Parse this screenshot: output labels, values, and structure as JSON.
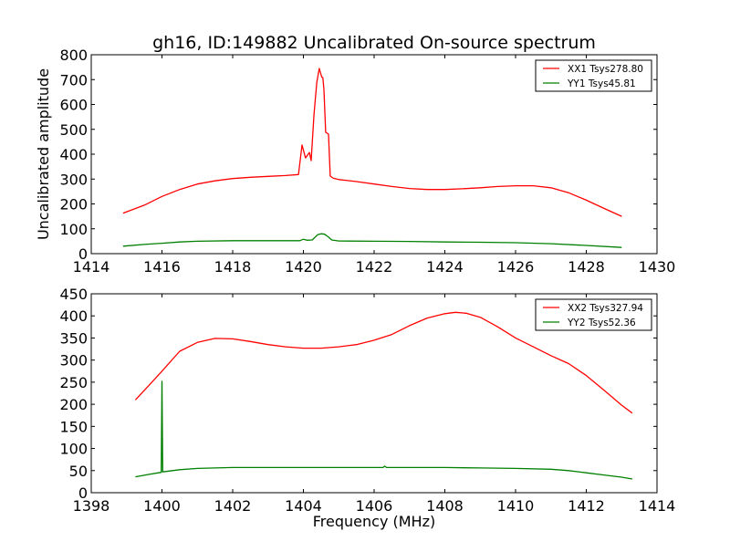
{
  "chart_data": [
    {
      "type": "line",
      "title": "gh16, ID:149882 Uncalibrated On-source spectrum",
      "xlabel": "",
      "ylabel": "Uncalibrated amplitude",
      "xlim": [
        1414,
        1430
      ],
      "ylim": [
        0,
        800
      ],
      "xticks": [
        1414,
        1416,
        1418,
        1420,
        1422,
        1424,
        1426,
        1428,
        1430
      ],
      "yticks": [
        0,
        100,
        200,
        300,
        400,
        500,
        600,
        700,
        800
      ],
      "grid": false,
      "legend_position": "top-right",
      "series": [
        {
          "name": "XX1 Tsys278.80",
          "color": "#ff0000",
          "x": [
            1414.9,
            1415.5,
            1416,
            1416.5,
            1417,
            1417.5,
            1418,
            1418.5,
            1419,
            1419.5,
            1419.86,
            1419.96,
            1420.06,
            1420.17,
            1420.22,
            1420.3,
            1420.38,
            1420.45,
            1420.52,
            1420.55,
            1420.58,
            1420.63,
            1420.71,
            1420.76,
            1420.85,
            1421,
            1421.5,
            1422,
            1422.5,
            1423,
            1423.5,
            1424,
            1424.5,
            1425,
            1425.5,
            1426,
            1426.5,
            1427,
            1427.5,
            1428,
            1428.5,
            1429
          ],
          "y": [
            163,
            195,
            230,
            258,
            280,
            293,
            302,
            307,
            311,
            314,
            318,
            437,
            385,
            407,
            374,
            560,
            690,
            745,
            710,
            708,
            660,
            488,
            481,
            312,
            303,
            298,
            290,
            280,
            270,
            262,
            258,
            258,
            261,
            265,
            270,
            273,
            273,
            265,
            245,
            215,
            182,
            150
          ]
        },
        {
          "name": "YY1 Tsys45.81",
          "color": "#008000",
          "x": [
            1414.9,
            1415.5,
            1416,
            1416.5,
            1417,
            1418,
            1419,
            1419.9,
            1420.0,
            1420.1,
            1420.25,
            1420.4,
            1420.5,
            1420.6,
            1420.7,
            1420.8,
            1421,
            1422,
            1423,
            1424,
            1425,
            1426,
            1427,
            1428,
            1429
          ],
          "y": [
            30,
            37,
            42,
            47,
            50,
            52,
            52,
            52,
            58,
            54,
            55,
            76,
            80,
            78,
            68,
            55,
            51,
            50,
            49,
            47,
            46,
            44,
            40,
            33,
            25
          ]
        }
      ]
    },
    {
      "type": "line",
      "title": "",
      "xlabel": "Frequency (MHz)",
      "ylabel": "",
      "xlim": [
        1398,
        1414
      ],
      "ylim": [
        0,
        450
      ],
      "xticks": [
        1398,
        1400,
        1402,
        1404,
        1406,
        1408,
        1410,
        1412,
        1414
      ],
      "yticks": [
        0,
        50,
        100,
        150,
        200,
        250,
        300,
        350,
        400,
        450
      ],
      "grid": false,
      "legend_position": "top-right",
      "series": [
        {
          "name": "XX2 Tsys327.94",
          "color": "#ff0000",
          "x": [
            1399.25,
            1399.6,
            1400,
            1400.5,
            1401,
            1401.5,
            1402,
            1402.5,
            1403,
            1403.5,
            1404,
            1404.5,
            1405,
            1405.5,
            1406,
            1406.5,
            1407,
            1407.5,
            1408,
            1408.3,
            1408.6,
            1409,
            1409.5,
            1410,
            1410.5,
            1411,
            1411.5,
            1412,
            1412.5,
            1413,
            1413.3
          ],
          "y": [
            210,
            240,
            275,
            320,
            340,
            349,
            348,
            342,
            335,
            330,
            327,
            327,
            330,
            335,
            345,
            358,
            378,
            395,
            405,
            408,
            406,
            397,
            375,
            350,
            330,
            310,
            292,
            265,
            232,
            198,
            180
          ]
        },
        {
          "name": "YY2 Tsys52.36",
          "color": "#008000",
          "x": [
            1399.25,
            1399.6,
            1399.98,
            1400.0,
            1400.02,
            1400.5,
            1401,
            1402,
            1403,
            1404,
            1405,
            1406,
            1406.25,
            1406.3,
            1406.35,
            1407,
            1408,
            1409,
            1410,
            1411,
            1411.5,
            1412,
            1412.5,
            1413,
            1413.3
          ],
          "y": [
            36,
            41,
            46,
            252,
            47,
            52,
            55,
            57,
            57,
            57,
            57,
            57,
            57,
            60,
            57,
            57,
            57,
            56,
            55,
            53,
            50,
            45,
            40,
            35,
            31
          ]
        }
      ]
    }
  ]
}
